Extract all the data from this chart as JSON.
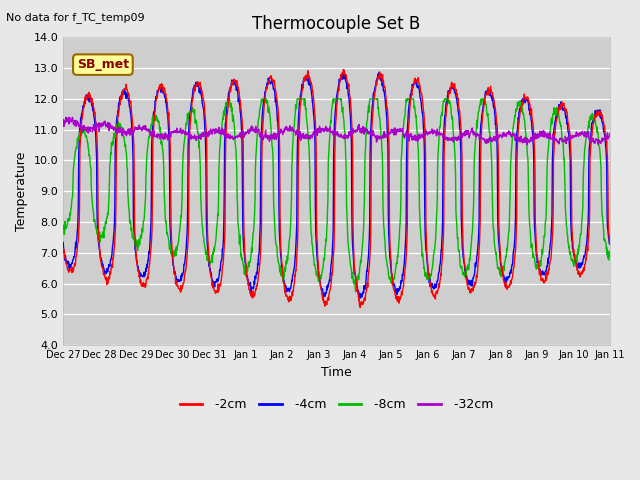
{
  "title": "Thermocouple Set B",
  "no_data_label": "No data for f_TC_temp09",
  "xlabel": "Time",
  "ylabel": "Temperature",
  "ylim": [
    4.0,
    14.0
  ],
  "yticks": [
    4.0,
    5.0,
    6.0,
    7.0,
    8.0,
    9.0,
    10.0,
    11.0,
    12.0,
    13.0,
    14.0
  ],
  "xtick_labels": [
    "Dec 27",
    "Dec 28",
    "Dec 29",
    "Dec 30",
    "Dec 31",
    "Jan 1",
    "Jan 2",
    "Jan 3",
    "Jan 4",
    "Jan 5",
    "Jan 6",
    "Jan 7",
    "Jan 8",
    "Jan 9",
    "Jan 10",
    "Jan 11"
  ],
  "colors": {
    "2cm": "#FF0000",
    "4cm": "#0000FF",
    "8cm": "#00BB00",
    "32cm": "#AA00CC"
  },
  "legend_box_color": "#FFFF99",
  "legend_box_text": "SB_met",
  "legend_box_text_color": "#8B0000",
  "bg_color": "#E8E8E8",
  "plot_bg_color": "#CECECE",
  "linewidth": 1.0
}
